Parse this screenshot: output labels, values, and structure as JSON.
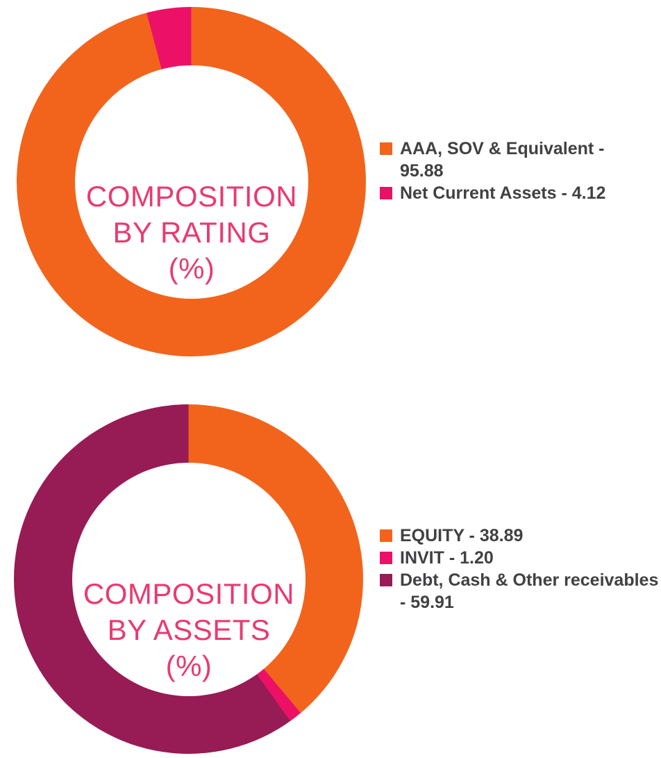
{
  "colors": {
    "orange": "#F2641C",
    "pink": "#EC1166",
    "maroon": "#971B54",
    "title_text": "#E93A70",
    "legend_text": "#414042",
    "background": "#FFFFFF"
  },
  "chart_data": [
    {
      "type": "pie",
      "variant": "donut",
      "title": "COMPOSITION BY RATING (%)",
      "title_lines": [
        "COMPOSITION",
        "BY RATING",
        "(%)"
      ],
      "start_angle_deg": 0,
      "direction": "clockwise",
      "legend_position": "right",
      "inner_radius_ratio": 0.67,
      "slices": [
        {
          "label": "AAA, SOV & Equivalent",
          "value": 95.88,
          "color": "#F2641C",
          "legend_lines": [
            "AAA, SOV & Equivalent -",
            "95.88"
          ]
        },
        {
          "label": "Net Current Assets",
          "value": 4.12,
          "color": "#EC1166",
          "legend_lines": [
            "Net Current Assets - 4.12"
          ]
        }
      ]
    },
    {
      "type": "pie",
      "variant": "donut",
      "title": "COMPOSITION BY ASSETS (%)",
      "title_lines": [
        "COMPOSITION",
        "BY ASSETS",
        "(%)"
      ],
      "start_angle_deg": 0,
      "direction": "clockwise",
      "legend_position": "right",
      "inner_radius_ratio": 0.67,
      "slices": [
        {
          "label": "EQUITY",
          "value": 38.89,
          "color": "#F2641C",
          "legend_lines": [
            "EQUITY - 38.89"
          ]
        },
        {
          "label": "INVIT",
          "value": 1.2,
          "color": "#EC1166",
          "legend_lines": [
            "INVIT - 1.20"
          ]
        },
        {
          "label": "Debt, Cash & Other receivables",
          "value": 59.91,
          "color": "#971B54",
          "legend_lines": [
            "Debt, Cash & Other receivables",
            "- 59.91"
          ]
        }
      ]
    }
  ]
}
